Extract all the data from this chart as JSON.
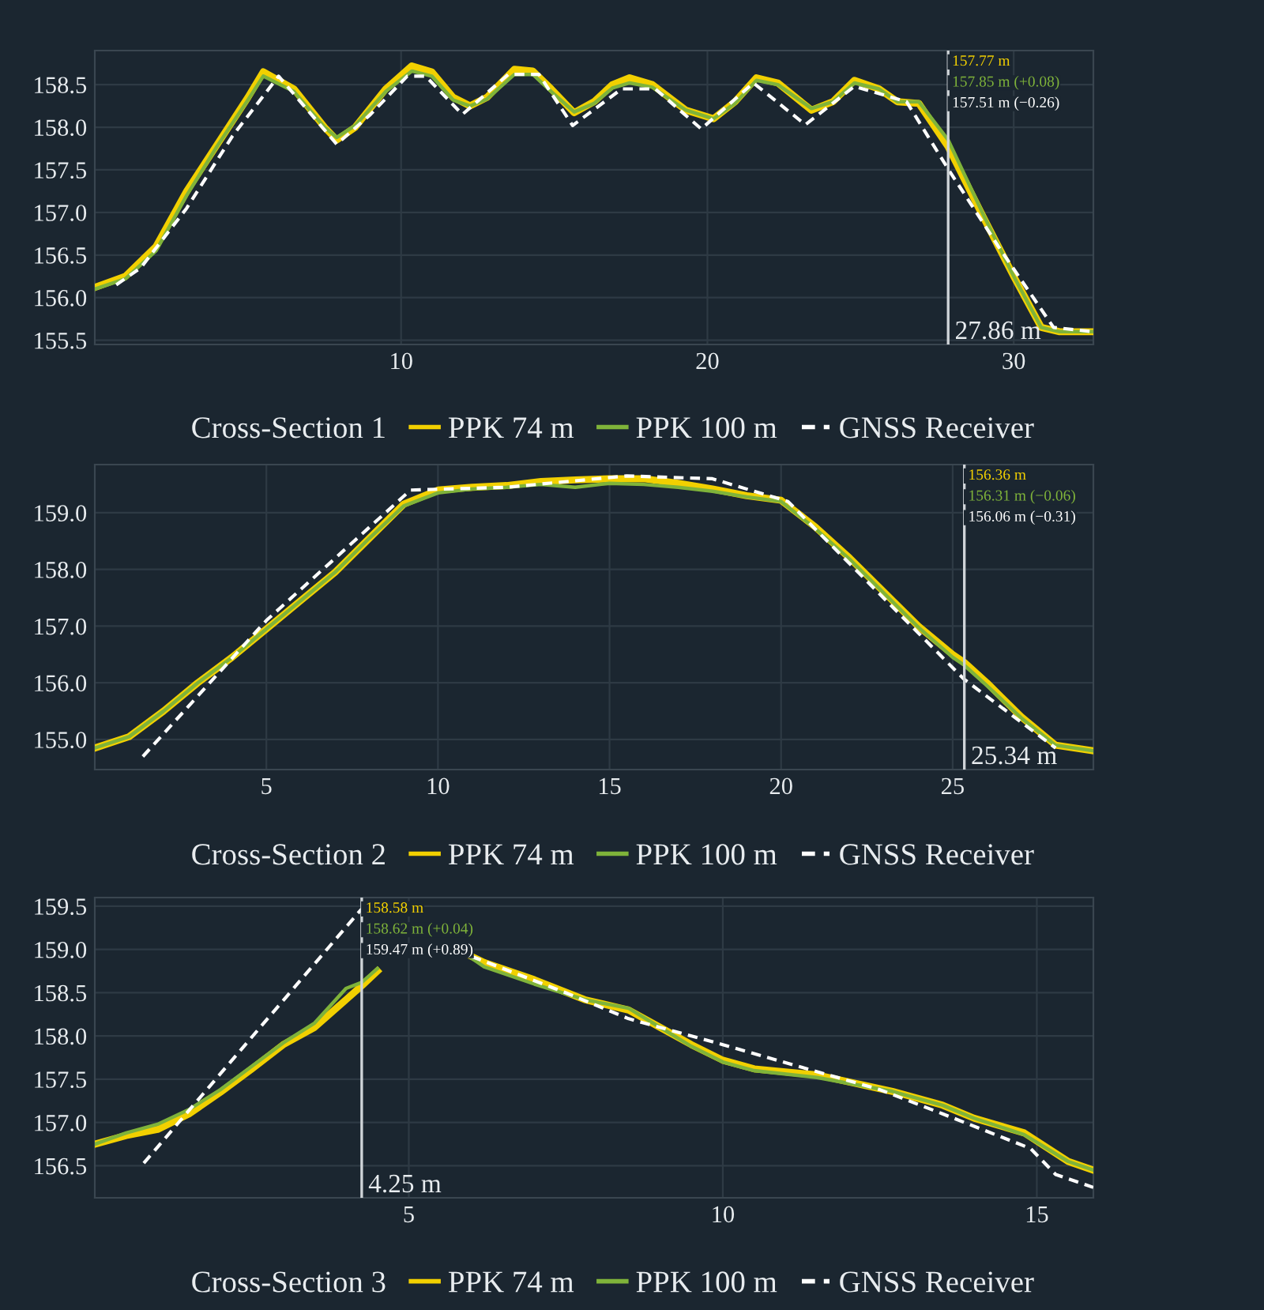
{
  "chart_data": [
    {
      "type": "line",
      "legend_title": "Cross-Section 1",
      "legend": "bottom",
      "grid": true,
      "marker": "none",
      "xlim": [
        0,
        32.6
      ],
      "xticks": [
        10,
        20,
        30
      ],
      "ylim": [
        155.45,
        158.9
      ],
      "yticks": [
        155.5,
        {
          "value": 156,
          "label": "156.0"
        },
        156.5,
        {
          "value": 157,
          "label": "157.0"
        },
        157.5,
        {
          "value": 158,
          "label": "158.0"
        },
        158.5
      ],
      "series": [
        {
          "name": "PPK 74 m",
          "color": "#f2d000",
          "line_style": "solid",
          "x": [
            0,
            1,
            2,
            3,
            4,
            5,
            5.5,
            6.5,
            7.5,
            7.9,
            8.5,
            9.5,
            10.35,
            11,
            11.7,
            12.25,
            12.8,
            13.7,
            14.3,
            14.9,
            15.65,
            16.3,
            16.9,
            17.46,
            18.2,
            19.3,
            20.2,
            20.9,
            21.6,
            22.3,
            23.4,
            24.1,
            24.8,
            25.6,
            26.2,
            26.9,
            27.86,
            29,
            30,
            30.9,
            31.5,
            32.6
          ],
          "values": [
            156.12,
            156.25,
            156.6,
            157.25,
            157.8,
            158.35,
            158.65,
            158.45,
            158.0,
            157.85,
            158.0,
            158.45,
            158.72,
            158.65,
            158.35,
            158.25,
            158.35,
            158.68,
            158.66,
            158.45,
            158.17,
            158.3,
            158.5,
            158.58,
            158.5,
            158.2,
            158.1,
            158.3,
            158.58,
            158.52,
            158.2,
            158.3,
            158.55,
            158.45,
            158.3,
            158.28,
            157.77,
            156.95,
            156.25,
            155.65,
            155.6,
            155.6
          ]
        },
        {
          "name": "PPK 100 m",
          "color": "#7fb33a",
          "line_style": "solid",
          "x": [
            0,
            1,
            2,
            3,
            4,
            5,
            5.5,
            6.5,
            7.5,
            7.9,
            8.5,
            9.5,
            10.35,
            11,
            11.7,
            12.25,
            12.8,
            13.7,
            14.3,
            14.9,
            15.65,
            16.3,
            16.9,
            17.46,
            18.2,
            19.3,
            20.2,
            20.9,
            21.6,
            22.3,
            23.4,
            24.1,
            24.8,
            25.6,
            26.2,
            26.9,
            27.86,
            29,
            30,
            30.9,
            31.5,
            32.6
          ],
          "values": [
            156.1,
            156.22,
            156.55,
            157.2,
            157.78,
            158.32,
            158.6,
            158.42,
            158.0,
            157.88,
            158.02,
            158.42,
            158.66,
            158.6,
            158.32,
            158.25,
            158.33,
            158.62,
            158.62,
            158.42,
            158.18,
            158.28,
            158.46,
            158.52,
            158.47,
            158.2,
            158.1,
            158.28,
            158.55,
            158.5,
            158.22,
            158.3,
            158.52,
            158.45,
            158.3,
            158.3,
            157.85,
            156.98,
            156.25,
            155.65,
            155.6,
            155.6
          ]
        },
        {
          "name": "GNSS Receiver",
          "color": "#ffffff",
          "line_style": "dashed",
          "x": [
            0.7,
            1.5,
            3,
            4.5,
            6,
            7.9,
            9,
            10.2,
            10.8,
            12,
            13.5,
            14.5,
            15.6,
            17.2,
            18.3,
            19.8,
            21.5,
            23.2,
            24.8,
            26.5,
            27.86,
            29.5,
            31.3,
            32.6
          ],
          "values": [
            156.15,
            156.35,
            157.05,
            157.9,
            158.6,
            157.8,
            158.15,
            158.6,
            158.6,
            158.15,
            158.62,
            158.62,
            158.02,
            158.45,
            158.45,
            157.98,
            158.52,
            158.03,
            158.48,
            158.3,
            157.51,
            156.6,
            155.65,
            155.6
          ]
        }
      ],
      "ref_lines": [
        {
          "axis": "x",
          "value": 27.86,
          "label": "27.86 m",
          "color": "#cfd4d8"
        }
      ],
      "annotations": [
        "157.77 m",
        "157.85 m (+0.08)",
        "157.51 m (−0.26)"
      ]
    },
    {
      "type": "line",
      "legend_title": "Cross-Section 2",
      "legend": "bottom",
      "grid": true,
      "marker": "none",
      "xlim": [
        0,
        29.1
      ],
      "xticks": [
        5,
        10,
        15,
        20,
        25
      ],
      "ylim": [
        154.47,
        159.85
      ],
      "yticks": [
        {
          "value": 155,
          "label": "155.0"
        },
        {
          "value": 156,
          "label": "156.0"
        },
        {
          "value": 157,
          "label": "157.0"
        },
        {
          "value": 158,
          "label": "158.0"
        },
        {
          "value": 159,
          "label": "159.0"
        }
      ],
      "series": [
        {
          "name": "PPK 74 m",
          "color": "#f2d000",
          "line_style": "solid",
          "x": [
            0,
            1,
            2,
            3,
            4,
            5,
            6,
            7,
            8,
            9,
            10,
            11,
            12,
            13,
            14,
            15,
            16,
            17,
            18,
            19,
            20,
            21,
            22,
            23,
            24,
            25,
            25.34,
            26,
            27,
            28,
            29.1
          ],
          "values": [
            154.85,
            155.05,
            155.5,
            156.0,
            156.45,
            156.95,
            157.45,
            157.95,
            158.55,
            159.15,
            159.4,
            159.45,
            159.48,
            159.55,
            159.58,
            159.6,
            159.6,
            159.52,
            159.42,
            159.3,
            159.22,
            158.75,
            158.2,
            157.6,
            157.0,
            156.5,
            156.36,
            156.0,
            155.4,
            154.9,
            154.8
          ]
        },
        {
          "name": "PPK 100 m",
          "color": "#7fb33a",
          "line_style": "solid",
          "x": [
            0,
            1,
            2,
            3,
            4,
            5,
            6,
            7,
            8,
            9,
            10,
            11,
            12,
            13,
            14,
            15,
            16,
            17,
            18,
            19,
            20,
            21,
            22,
            23,
            24,
            25,
            25.34,
            26,
            27,
            28,
            29.1
          ],
          "values": [
            154.85,
            155.05,
            155.5,
            156.0,
            156.45,
            156.95,
            157.45,
            157.95,
            158.55,
            159.12,
            159.35,
            159.42,
            159.45,
            159.5,
            159.45,
            159.52,
            159.5,
            159.45,
            159.38,
            159.28,
            159.2,
            158.72,
            158.18,
            157.58,
            156.98,
            156.45,
            156.31,
            155.95,
            155.38,
            154.9,
            154.8
          ]
        },
        {
          "name": "GNSS Receiver",
          "color": "#ffffff",
          "line_style": "dashed",
          "x": [
            1.4,
            5,
            9.2,
            12,
            15.5,
            18,
            20.2,
            25.34,
            28
          ],
          "values": [
            154.7,
            157.1,
            159.4,
            159.45,
            159.65,
            159.6,
            159.2,
            156.06,
            154.85
          ]
        }
      ],
      "ref_lines": [
        {
          "axis": "x",
          "value": 25.34,
          "label": "25.34 m",
          "color": "#cfd4d8"
        }
      ],
      "annotations": [
        "156.36 m",
        "156.31 m (−0.06)",
        "156.06 m (−0.31)"
      ]
    },
    {
      "type": "line",
      "legend_title": "Cross-Section 3",
      "legend": "bottom",
      "grid": true,
      "marker": "none",
      "xlim": [
        0,
        15.9
      ],
      "xticks": [
        5,
        10,
        15
      ],
      "ylim": [
        156.13,
        159.6
      ],
      "yticks": [
        156.5,
        {
          "value": 157,
          "label": "157.0"
        },
        157.5,
        {
          "value": 158,
          "label": "158.0"
        },
        158.5,
        {
          "value": 159,
          "label": "159.0"
        },
        159.5
      ],
      "series": [
        {
          "name": "PPK 74 m",
          "color": "#f2d000",
          "line_style": "solid",
          "x": [
            0,
            0.5,
            1,
            1.5,
            2,
            2.5,
            3,
            3.5,
            4,
            4.25,
            4.5,
            4.8,
            5.2,
            6.0,
            6.2,
            7,
            7.8,
            8.5,
            9,
            9.5,
            10,
            10.5,
            11.5,
            12.7,
            13.5,
            14,
            14.8,
            15.5,
            15.9
          ],
          "values": [
            156.75,
            156.85,
            156.92,
            157.1,
            157.35,
            157.62,
            157.9,
            158.1,
            158.42,
            158.58,
            158.75,
            null,
            null,
            158.92,
            158.85,
            158.65,
            158.42,
            158.3,
            158.1,
            157.9,
            157.72,
            157.62,
            157.55,
            157.36,
            157.2,
            157.05,
            156.88,
            156.55,
            156.45
          ]
        },
        {
          "name": "PPK 100 m",
          "color": "#7fb33a",
          "line_style": "solid",
          "x": [
            0,
            0.5,
            1,
            1.5,
            2,
            2.5,
            3,
            3.5,
            4,
            4.25,
            4.5,
            4.8,
            5.2,
            6.0,
            6.2,
            7,
            7.8,
            8.5,
            9,
            9.5,
            10,
            10.5,
            11.5,
            12.7,
            13.5,
            14,
            14.8,
            15.5,
            15.9
          ],
          "values": [
            156.75,
            156.88,
            156.98,
            157.15,
            157.38,
            157.65,
            157.92,
            158.15,
            158.55,
            158.62,
            158.78,
            null,
            null,
            158.9,
            158.8,
            158.6,
            158.42,
            158.32,
            158.1,
            157.88,
            157.7,
            157.6,
            157.52,
            157.36,
            157.2,
            157.05,
            156.86,
            156.55,
            156.45
          ]
        },
        {
          "name": "GNSS Receiver",
          "color": "#ffffff",
          "line_style": "dashed",
          "x": [
            0.78,
            4.25,
            5.0,
            6.0,
            7.5,
            8.5,
            10,
            12.5,
            13.5,
            14.9,
            15.3,
            15.9
          ],
          "values": [
            156.53,
            159.47,
            null,
            158.92,
            158.5,
            158.2,
            157.9,
            157.38,
            157.1,
            156.7,
            156.4,
            156.25
          ]
        }
      ],
      "ref_lines": [
        {
          "axis": "x",
          "value": 4.25,
          "label": "4.25 m",
          "color": "#cfd4d8"
        }
      ],
      "annotations": [
        "158.58 m",
        "158.62 m (+0.04)",
        "159.47 m (+0.89)"
      ]
    }
  ]
}
